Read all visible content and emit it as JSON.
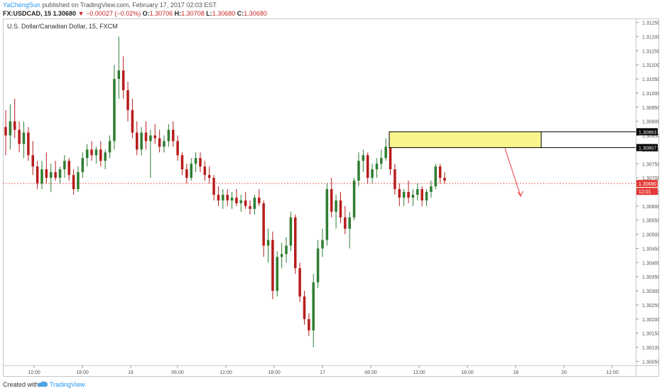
{
  "header": {
    "author": "YaChengSun",
    "published_text": " published on TradingView.com, February 17, 2017 02:03 EST",
    "symbol": "FX:USDCAD, 15",
    "last": "1.30680",
    "change": "−0.00027 (−0.02%)",
    "open_label": "O:",
    "open": "1.30706",
    "high_label": "H:",
    "high": "1.30708",
    "low_label": "L:",
    "low": "1.30680",
    "close_label": "C:",
    "close": "1.30680"
  },
  "footer": {
    "created_label": "Created with",
    "brand": "TradingView",
    "brand_icon": "tradingview-logo-icon"
  },
  "colors": {
    "up": "#2e7d32",
    "down": "#b71c1c",
    "zone_fill": "#f9f58c",
    "zone_border": "#000000",
    "arrow": "#e53935",
    "current_price_line": "#ef5350",
    "price_badge_dark": "#000000",
    "price_badge_red": "#e53935"
  },
  "chart_data": {
    "type": "candlestick",
    "title": "U.S. Dollar/Canadian Dollar, 15, FXCM",
    "ylim": [
      1.3005,
      1.3125
    ],
    "yticks": [
      "1.31250",
      "1.31200",
      "1.31150",
      "1.31100",
      "1.31050",
      "1.31000",
      "1.30950",
      "1.30900",
      "1.30850",
      "1.30800",
      "1.30750",
      "1.30700",
      "1.30650",
      "1.30600",
      "1.30550",
      "1.30500",
      "1.30450",
      "1.30400",
      "1.30350",
      "1.30300",
      "1.30250",
      "1.30200",
      "1.30150",
      "1.30100",
      "1.30050"
    ],
    "xticks": [
      "12:00",
      "18:00",
      "16",
      "06:00",
      "12:00",
      "18:00",
      "17",
      "06:00",
      "12:00",
      "18:00",
      "18",
      "20",
      "12:00"
    ],
    "price_badges": [
      {
        "label": "1.30863",
        "value": 1.30863,
        "style": "dark"
      },
      {
        "label": "1.30807",
        "value": 1.30807,
        "style": "dark"
      },
      {
        "label": "1.30680",
        "value": 1.3068,
        "style": "red"
      },
      {
        "label": "12:01",
        "value": 1.30652,
        "style": "red"
      }
    ],
    "current_price": 1.3068,
    "zone": {
      "price_top": 1.30863,
      "price_bottom": 1.30807
    },
    "candles": [
      {
        "o": 1.3088,
        "h": 1.3094,
        "l": 1.3078,
        "c": 1.3085
      },
      {
        "o": 1.3085,
        "h": 1.3096,
        "l": 1.308,
        "c": 1.309
      },
      {
        "o": 1.309,
        "h": 1.3098,
        "l": 1.3084,
        "c": 1.3087
      },
      {
        "o": 1.3087,
        "h": 1.309,
        "l": 1.3079,
        "c": 1.3082
      },
      {
        "o": 1.3082,
        "h": 1.309,
        "l": 1.3077,
        "c": 1.3086
      },
      {
        "o": 1.3086,
        "h": 1.3088,
        "l": 1.3076,
        "c": 1.3078
      },
      {
        "o": 1.3078,
        "h": 1.3083,
        "l": 1.3071,
        "c": 1.3074
      },
      {
        "o": 1.3074,
        "h": 1.3076,
        "l": 1.3066,
        "c": 1.3068
      },
      {
        "o": 1.3068,
        "h": 1.3076,
        "l": 1.3066,
        "c": 1.3073
      },
      {
        "o": 1.3073,
        "h": 1.3079,
        "l": 1.3068,
        "c": 1.307
      },
      {
        "o": 1.307,
        "h": 1.3075,
        "l": 1.3065,
        "c": 1.3072
      },
      {
        "o": 1.3072,
        "h": 1.3076,
        "l": 1.3069,
        "c": 1.307
      },
      {
        "o": 1.307,
        "h": 1.3074,
        "l": 1.3068,
        "c": 1.3073
      },
      {
        "o": 1.3073,
        "h": 1.3078,
        "l": 1.307,
        "c": 1.3076
      },
      {
        "o": 1.3076,
        "h": 1.3077,
        "l": 1.3069,
        "c": 1.3071
      },
      {
        "o": 1.3071,
        "h": 1.3073,
        "l": 1.3064,
        "c": 1.3066
      },
      {
        "o": 1.3066,
        "h": 1.3074,
        "l": 1.3065,
        "c": 1.3072
      },
      {
        "o": 1.3072,
        "h": 1.3079,
        "l": 1.307,
        "c": 1.3077
      },
      {
        "o": 1.3077,
        "h": 1.3082,
        "l": 1.3074,
        "c": 1.308
      },
      {
        "o": 1.308,
        "h": 1.3083,
        "l": 1.3076,
        "c": 1.3078
      },
      {
        "o": 1.3078,
        "h": 1.3081,
        "l": 1.3075,
        "c": 1.308
      },
      {
        "o": 1.308,
        "h": 1.3083,
        "l": 1.3074,
        "c": 1.3076
      },
      {
        "o": 1.3076,
        "h": 1.308,
        "l": 1.3073,
        "c": 1.3079
      },
      {
        "o": 1.3079,
        "h": 1.3085,
        "l": 1.3077,
        "c": 1.3083
      },
      {
        "o": 1.3083,
        "h": 1.311,
        "l": 1.308,
        "c": 1.3105
      },
      {
        "o": 1.3105,
        "h": 1.312,
        "l": 1.3098,
        "c": 1.3108
      },
      {
        "o": 1.3108,
        "h": 1.3113,
        "l": 1.3098,
        "c": 1.3101
      },
      {
        "o": 1.3101,
        "h": 1.3104,
        "l": 1.309,
        "c": 1.3094
      },
      {
        "o": 1.3094,
        "h": 1.3098,
        "l": 1.3084,
        "c": 1.3086
      },
      {
        "o": 1.3086,
        "h": 1.309,
        "l": 1.3078,
        "c": 1.308
      },
      {
        "o": 1.308,
        "h": 1.3088,
        "l": 1.3078,
        "c": 1.3086
      },
      {
        "o": 1.3086,
        "h": 1.309,
        "l": 1.308,
        "c": 1.3083
      },
      {
        "o": 1.3083,
        "h": 1.3087,
        "l": 1.307,
        "c": 1.3085
      },
      {
        "o": 1.3085,
        "h": 1.3089,
        "l": 1.3082,
        "c": 1.3084
      },
      {
        "o": 1.3084,
        "h": 1.3087,
        "l": 1.3079,
        "c": 1.3081
      },
      {
        "o": 1.3081,
        "h": 1.3085,
        "l": 1.3079,
        "c": 1.3083
      },
      {
        "o": 1.3083,
        "h": 1.3089,
        "l": 1.3081,
        "c": 1.3087
      },
      {
        "o": 1.3087,
        "h": 1.309,
        "l": 1.3081,
        "c": 1.3083
      },
      {
        "o": 1.3083,
        "h": 1.3085,
        "l": 1.3076,
        "c": 1.3078
      },
      {
        "o": 1.3078,
        "h": 1.3079,
        "l": 1.3071,
        "c": 1.3073
      },
      {
        "o": 1.3073,
        "h": 1.3075,
        "l": 1.3068,
        "c": 1.307
      },
      {
        "o": 1.307,
        "h": 1.3077,
        "l": 1.3069,
        "c": 1.3075
      },
      {
        "o": 1.3075,
        "h": 1.3079,
        "l": 1.3072,
        "c": 1.3077
      },
      {
        "o": 1.3077,
        "h": 1.3079,
        "l": 1.3072,
        "c": 1.3074
      },
      {
        "o": 1.3074,
        "h": 1.3076,
        "l": 1.3069,
        "c": 1.3071
      },
      {
        "o": 1.3071,
        "h": 1.3074,
        "l": 1.3068,
        "c": 1.307
      },
      {
        "o": 1.307,
        "h": 1.3071,
        "l": 1.3062,
        "c": 1.3064
      },
      {
        "o": 1.3064,
        "h": 1.3067,
        "l": 1.306,
        "c": 1.3062
      },
      {
        "o": 1.3062,
        "h": 1.3066,
        "l": 1.3059,
        "c": 1.3064
      },
      {
        "o": 1.3064,
        "h": 1.3066,
        "l": 1.306,
        "c": 1.3062
      },
      {
        "o": 1.3062,
        "h": 1.3065,
        "l": 1.3059,
        "c": 1.3063
      },
      {
        "o": 1.3063,
        "h": 1.3066,
        "l": 1.306,
        "c": 1.3061
      },
      {
        "o": 1.3061,
        "h": 1.3064,
        "l": 1.3058,
        "c": 1.3062
      },
      {
        "o": 1.3062,
        "h": 1.3065,
        "l": 1.3059,
        "c": 1.306
      },
      {
        "o": 1.306,
        "h": 1.3062,
        "l": 1.3057,
        "c": 1.3059
      },
      {
        "o": 1.3059,
        "h": 1.3064,
        "l": 1.3057,
        "c": 1.3063
      },
      {
        "o": 1.3063,
        "h": 1.3066,
        "l": 1.306,
        "c": 1.3061
      },
      {
        "o": 1.3061,
        "h": 1.3062,
        "l": 1.3042,
        "c": 1.3046
      },
      {
        "o": 1.3046,
        "h": 1.3052,
        "l": 1.304,
        "c": 1.3048
      },
      {
        "o": 1.3048,
        "h": 1.3051,
        "l": 1.3027,
        "c": 1.303
      },
      {
        "o": 1.303,
        "h": 1.3044,
        "l": 1.3028,
        "c": 1.3042
      },
      {
        "o": 1.3042,
        "h": 1.3047,
        "l": 1.3038,
        "c": 1.3043
      },
      {
        "o": 1.3043,
        "h": 1.3049,
        "l": 1.304,
        "c": 1.3046
      },
      {
        "o": 1.3046,
        "h": 1.3058,
        "l": 1.3044,
        "c": 1.3056
      },
      {
        "o": 1.3056,
        "h": 1.3057,
        "l": 1.3036,
        "c": 1.3038
      },
      {
        "o": 1.3038,
        "h": 1.304,
        "l": 1.3026,
        "c": 1.3028
      },
      {
        "o": 1.3028,
        "h": 1.303,
        "l": 1.3018,
        "c": 1.302
      },
      {
        "o": 1.302,
        "h": 1.3022,
        "l": 1.3014,
        "c": 1.3016
      },
      {
        "o": 1.3016,
        "h": 1.3036,
        "l": 1.301,
        "c": 1.3033
      },
      {
        "o": 1.3033,
        "h": 1.3048,
        "l": 1.3031,
        "c": 1.3045
      },
      {
        "o": 1.3045,
        "h": 1.3052,
        "l": 1.3042,
        "c": 1.3048
      },
      {
        "o": 1.3048,
        "h": 1.3068,
        "l": 1.3046,
        "c": 1.3066
      },
      {
        "o": 1.3066,
        "h": 1.307,
        "l": 1.3056,
        "c": 1.3058
      },
      {
        "o": 1.3058,
        "h": 1.3064,
        "l": 1.3052,
        "c": 1.3062
      },
      {
        "o": 1.3062,
        "h": 1.3065,
        "l": 1.3054,
        "c": 1.3056
      },
      {
        "o": 1.3056,
        "h": 1.306,
        "l": 1.305,
        "c": 1.3052
      },
      {
        "o": 1.3052,
        "h": 1.3058,
        "l": 1.3045,
        "c": 1.3056
      },
      {
        "o": 1.3056,
        "h": 1.307,
        "l": 1.3055,
        "c": 1.3069
      },
      {
        "o": 1.3069,
        "h": 1.3079,
        "l": 1.3067,
        "c": 1.3076
      },
      {
        "o": 1.3076,
        "h": 1.308,
        "l": 1.3072,
        "c": 1.3078
      },
      {
        "o": 1.3078,
        "h": 1.3079,
        "l": 1.3068,
        "c": 1.307
      },
      {
        "o": 1.307,
        "h": 1.3075,
        "l": 1.3068,
        "c": 1.3073
      },
      {
        "o": 1.3073,
        "h": 1.3077,
        "l": 1.307,
        "c": 1.3075
      },
      {
        "o": 1.3075,
        "h": 1.308,
        "l": 1.3073,
        "c": 1.3077
      },
      {
        "o": 1.3077,
        "h": 1.3084,
        "l": 1.3076,
        "c": 1.3081
      },
      {
        "o": 1.3081,
        "h": 1.3083,
        "l": 1.3071,
        "c": 1.3073
      },
      {
        "o": 1.3073,
        "h": 1.3075,
        "l": 1.3064,
        "c": 1.3066
      },
      {
        "o": 1.3066,
        "h": 1.3068,
        "l": 1.306,
        "c": 1.3063
      },
      {
        "o": 1.3063,
        "h": 1.3066,
        "l": 1.306,
        "c": 1.3065
      },
      {
        "o": 1.3065,
        "h": 1.3069,
        "l": 1.3061,
        "c": 1.3063
      },
      {
        "o": 1.3063,
        "h": 1.3066,
        "l": 1.306,
        "c": 1.3064
      },
      {
        "o": 1.3064,
        "h": 1.3068,
        "l": 1.3062,
        "c": 1.3066
      },
      {
        "o": 1.3066,
        "h": 1.3067,
        "l": 1.306,
        "c": 1.3062
      },
      {
        "o": 1.3062,
        "h": 1.3066,
        "l": 1.306,
        "c": 1.3065
      },
      {
        "o": 1.3065,
        "h": 1.3069,
        "l": 1.3063,
        "c": 1.3067
      },
      {
        "o": 1.3067,
        "h": 1.3075,
        "l": 1.3066,
        "c": 1.3074
      },
      {
        "o": 1.3074,
        "h": 1.3075,
        "l": 1.3068,
        "c": 1.307
      },
      {
        "o": 1.307,
        "h": 1.3072,
        "l": 1.3068,
        "c": 1.3069
      }
    ]
  }
}
